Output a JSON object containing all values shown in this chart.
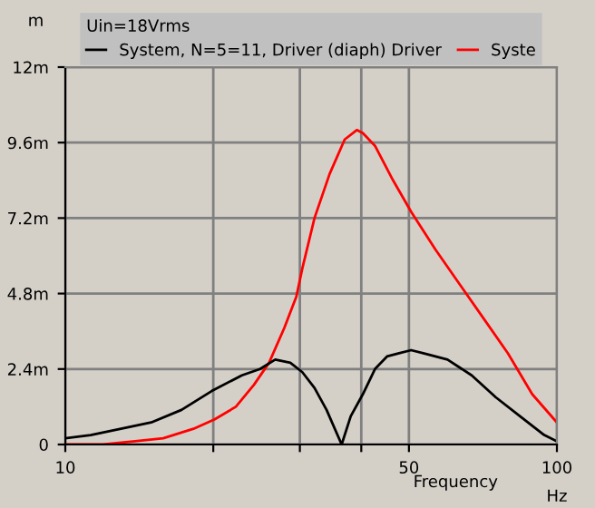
{
  "chart_data": {
    "type": "line",
    "legend_title": "Uin=18Vrms",
    "ylabel": "m",
    "xlabel": "Frequency",
    "annotations": [
      "Hz"
    ],
    "log": "x",
    "grid": true,
    "legend": "top",
    "line_style": "solid",
    "marker": "none",
    "xlim": [
      10,
      100
    ],
    "xticks": [
      10,
      {
        "value": 20,
        "label": null
      },
      {
        "value": 30,
        "label": null
      },
      {
        "value": 40,
        "label": null
      },
      50,
      100
    ],
    "ylim": [
      0,
      12
    ],
    "yticks": [
      0,
      {
        "value": 2.4,
        "label": "2.4m"
      },
      {
        "value": 4.8,
        "label": "4.8m"
      },
      {
        "value": 7.2,
        "label": "7.2m"
      },
      {
        "value": 9.6,
        "label": "9.6m"
      },
      {
        "value": 12,
        "label": "12m"
      }
    ],
    "series": [
      {
        "name": "Syste",
        "color": "#ff0000",
        "x": [
          10,
          11.92,
          13.73,
          15.82,
          18.23,
          20.13,
          22.23,
          24.2,
          25.97,
          27.88,
          29.51,
          30.35,
          32.13,
          34.48,
          37.01,
          39.17,
          40.3,
          42.65,
          46.42,
          50.53,
          56.6,
          63.39,
          71.0,
          79.5,
          89.07,
          100
        ],
        "values": [
          0,
          0,
          0.1,
          0.2,
          0.5,
          0.8,
          1.2,
          1.9,
          2.6,
          3.7,
          4.7,
          5.6,
          7.2,
          8.6,
          9.7,
          10.0,
          9.9,
          9.5,
          8.4,
          7.4,
          6.2,
          5.1,
          4.0,
          2.9,
          1.6,
          0.7
        ]
      },
      {
        "name": "System, N=5=11, Driver (diaph) Driver",
        "color": "#000000",
        "x": [
          10,
          11.26,
          12.98,
          14.95,
          17.23,
          19.85,
          22.87,
          24.9,
          26.73,
          28.69,
          30.35,
          32.13,
          34.0,
          36.49,
          38.07,
          40.3,
          42.65,
          45.12,
          47.75,
          50.53,
          53.48,
          59.9,
          67.08,
          75.12,
          84.14,
          94.23,
          100
        ],
        "values": [
          0.2,
          0.3,
          0.5,
          0.7,
          1.1,
          1.7,
          2.2,
          2.4,
          2.7,
          2.6,
          2.3,
          1.8,
          1.1,
          0,
          0.9,
          1.6,
          2.4,
          2.8,
          2.9,
          3.0,
          2.9,
          2.7,
          2.2,
          1.5,
          0.9,
          0.3,
          0.1
        ]
      }
    ]
  }
}
